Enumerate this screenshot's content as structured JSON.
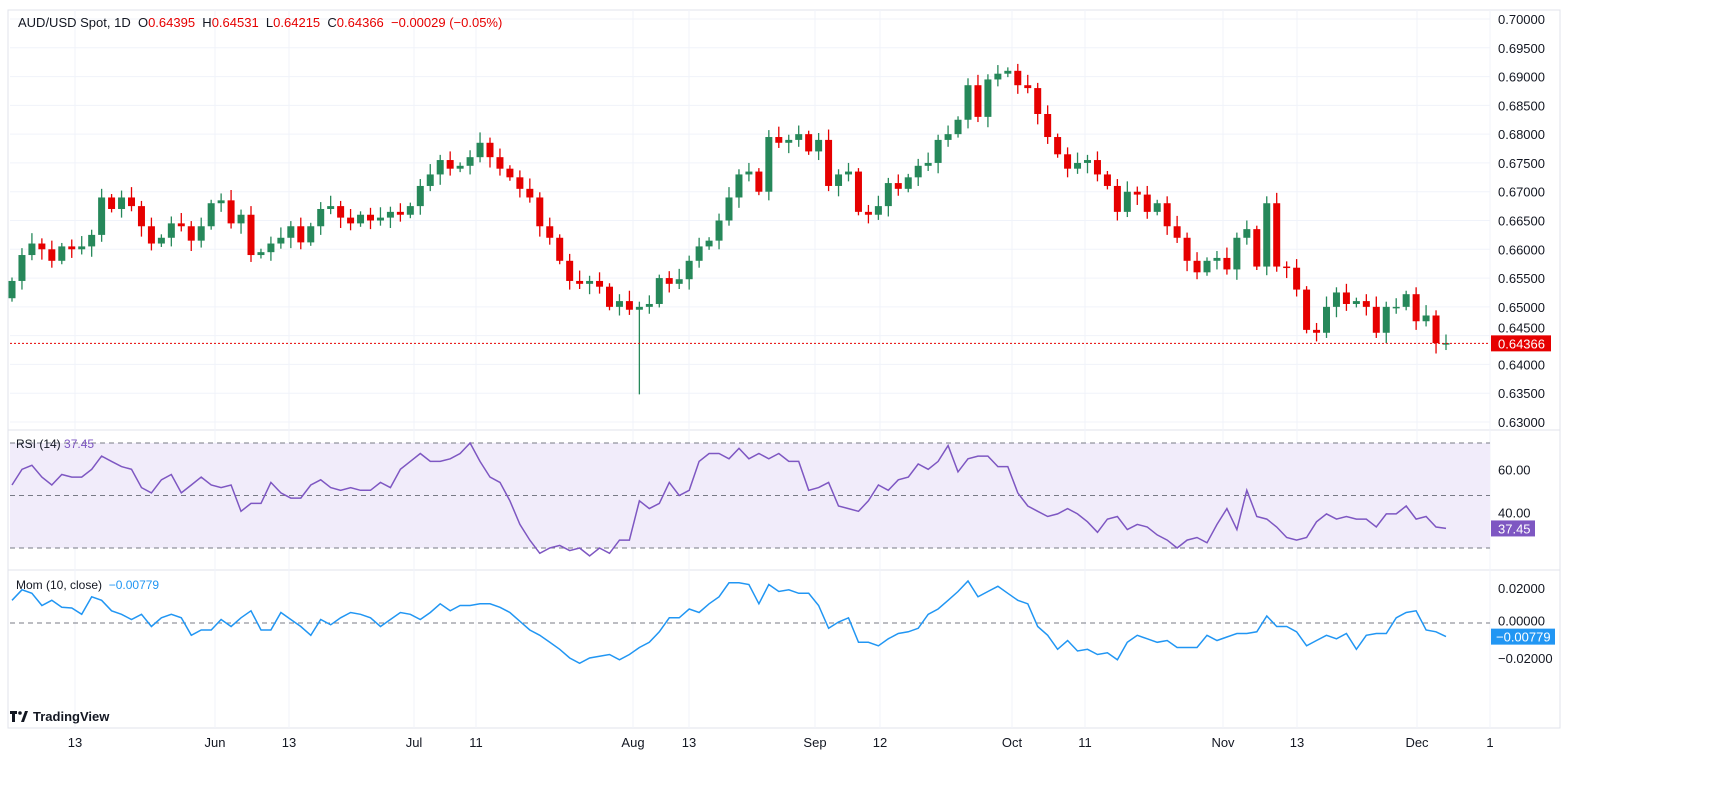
{
  "header": {
    "symbol": "AUD/USD Spot, 1D",
    "open_label": "O",
    "open": "0.64395",
    "high_label": "H",
    "high": "0.64531",
    "low_label": "L",
    "low": "0.64215",
    "close_label": "C",
    "close": "0.64366",
    "change": "−0.00029 (−0.05%)"
  },
  "rsi": {
    "label": "RSI (14)",
    "value": "37.45",
    "color": "#7e57c2"
  },
  "mom": {
    "label": "Mom (10, close)",
    "value": "−0.00779",
    "color": "#2196f3"
  },
  "brand": {
    "name": "TradingView",
    "icon": "tradingview-logo-icon"
  },
  "colors": {
    "up": "#26885a",
    "down": "#e60000",
    "rsi_band": "#f1ecfa"
  },
  "chart_data": [
    {
      "type": "candlestick",
      "ylim": [
        0.63,
        0.7
      ],
      "y_ticks": [
        "0.70000",
        "0.69500",
        "0.69000",
        "0.68500",
        "0.68000",
        "0.67500",
        "0.67000",
        "0.66500",
        "0.66000",
        "0.65500",
        "0.65000",
        "0.64500",
        "0.64000",
        "0.63500",
        "0.63000"
      ],
      "x_ticks": [
        "13",
        "Jun",
        "13",
        "Jul",
        "11",
        "Aug",
        "13",
        "Sep",
        "12",
        "Oct",
        "11",
        "Nov",
        "13",
        "Dec",
        "1"
      ],
      "last_price": 0.64366,
      "last_price_label": "0.64366",
      "first_open": 0.6515,
      "aug5_low": 0.6348,
      "closes": [
        0.6545,
        0.659,
        0.661,
        0.66,
        0.658,
        0.6605,
        0.66,
        0.6605,
        0.6625,
        0.669,
        0.667,
        0.669,
        0.6675,
        0.664,
        0.661,
        0.662,
        0.6645,
        0.664,
        0.6615,
        0.664,
        0.668,
        0.6685,
        0.6645,
        0.666,
        0.659,
        0.6595,
        0.661,
        0.662,
        0.664,
        0.6612,
        0.664,
        0.667,
        0.6675,
        0.6655,
        0.6645,
        0.666,
        0.665,
        0.6655,
        0.6665,
        0.666,
        0.6675,
        0.671,
        0.673,
        0.6755,
        0.674,
        0.6745,
        0.676,
        0.6785,
        0.676,
        0.674,
        0.6725,
        0.6705,
        0.669,
        0.664,
        0.662,
        0.658,
        0.6545,
        0.654,
        0.6545,
        0.6535,
        0.65,
        0.651,
        0.6495,
        0.65,
        0.6505,
        0.655,
        0.654,
        0.6548,
        0.658,
        0.6605,
        0.6615,
        0.665,
        0.669,
        0.673,
        0.6735,
        0.67,
        0.6795,
        0.6785,
        0.679,
        0.68,
        0.677,
        0.679,
        0.671,
        0.673,
        0.6735,
        0.6665,
        0.666,
        0.6675,
        0.6715,
        0.6705,
        0.6725,
        0.6745,
        0.675,
        0.679,
        0.68,
        0.6825,
        0.6885,
        0.683,
        0.6895,
        0.6905,
        0.691,
        0.6885,
        0.688,
        0.6835,
        0.6795,
        0.6765,
        0.674,
        0.675,
        0.6755,
        0.673,
        0.671,
        0.6665,
        0.67,
        0.6695,
        0.6665,
        0.668,
        0.664,
        0.662,
        0.658,
        0.656,
        0.658,
        0.6585,
        0.6565,
        0.662,
        0.6635,
        0.657,
        0.668,
        0.657,
        0.6568,
        0.653,
        0.646,
        0.6455,
        0.65,
        0.6525,
        0.6505,
        0.651,
        0.65,
        0.6455,
        0.65,
        0.65,
        0.6522,
        0.6475,
        0.6485,
        0.6437,
        0.6437
      ]
    },
    {
      "type": "line",
      "name": "RSI (14)",
      "ylim": [
        20,
        80
      ],
      "y_ticks": [
        "60.00",
        "40.00"
      ],
      "bands": [
        70,
        50,
        30
      ],
      "values": [
        54,
        60,
        61.5,
        57,
        54,
        58,
        57,
        57,
        60,
        65,
        63,
        61,
        60,
        53,
        51,
        56,
        58,
        51,
        54,
        57,
        54,
        53,
        54,
        44,
        47,
        47,
        55,
        51,
        49,
        49,
        54,
        56,
        53,
        52,
        53,
        52,
        52,
        55,
        53,
        60,
        63,
        66,
        63,
        63,
        64,
        66,
        70,
        63,
        57,
        55,
        48,
        39,
        33,
        28,
        30,
        31,
        29,
        30,
        27,
        30,
        28,
        33,
        33,
        48,
        45,
        47,
        55,
        50,
        52,
        63,
        66,
        66,
        64,
        68,
        64,
        66,
        64,
        66,
        63,
        63,
        52,
        53,
        55,
        46,
        45,
        44,
        48,
        54,
        52,
        56,
        57,
        62,
        60,
        63,
        69,
        59,
        64,
        65,
        65,
        61,
        61,
        51,
        46,
        44,
        42,
        43,
        45,
        43,
        40,
        36,
        41,
        42,
        37,
        39,
        38,
        35,
        33,
        30,
        33,
        34,
        32,
        39,
        45,
        37,
        52,
        42,
        41,
        38,
        34,
        33,
        34,
        40,
        43,
        41,
        42,
        41,
        41,
        38,
        43,
        43,
        46,
        41,
        42,
        38,
        37.45
      ]
    },
    {
      "type": "line",
      "name": "Mom (10, close)",
      "ylim": [
        -0.03,
        0.03
      ],
      "y_ticks": [
        "0.02000",
        "0.00000",
        "−0.02000"
      ],
      "zero_line": 0,
      "values": [
        0.013,
        0.019,
        0.017,
        0.01,
        0.013,
        0.009,
        0.0086,
        0.005,
        0.015,
        0.013,
        0.007,
        0.005,
        0.002,
        0.005,
        -0.002,
        0.003,
        0.005,
        0.003,
        -0.007,
        -0.004,
        -0.004,
        0.002,
        -0.002,
        0.003,
        0.007,
        -0.004,
        -0.004,
        0.006,
        0.002,
        -0.002,
        -0.007,
        0.002,
        -0.001,
        0.003,
        0.006,
        0.005,
        0.003,
        -0.002,
        0.002,
        0.006,
        0.005,
        0.002,
        0.006,
        0.011,
        0.007,
        0.01,
        0.01,
        0.011,
        0.011,
        0.009,
        0.006,
        0.001,
        -0.004,
        -0.007,
        -0.011,
        -0.015,
        -0.02,
        -0.023,
        -0.02,
        -0.019,
        -0.018,
        -0.021,
        -0.018,
        -0.014,
        -0.011,
        -0.005,
        0.003,
        0.003,
        0.008,
        0.006,
        0.011,
        0.015,
        0.023,
        0.023,
        0.022,
        0.011,
        0.022,
        0.018,
        0.019,
        0.017,
        0.017,
        0.01,
        -0.003,
        0.0006,
        0.003,
        -0.011,
        -0.011,
        -0.013,
        -0.009,
        -0.006,
        -0.005,
        -0.003,
        0.005,
        0.008,
        0.013,
        0.018,
        0.024,
        0.015,
        0.018,
        0.021,
        0.017,
        0.013,
        0.011,
        -0.002,
        -0.007,
        -0.015,
        -0.01,
        -0.016,
        -0.015,
        -0.018,
        -0.017,
        -0.021,
        -0.011,
        -0.007,
        -0.009,
        -0.011,
        -0.01,
        -0.014,
        -0.014,
        -0.014,
        -0.007,
        -0.01,
        -0.008,
        -0.006,
        -0.006,
        -0.005,
        0.004,
        -0.002,
        -0.002,
        -0.005,
        -0.013,
        -0.01,
        -0.007,
        -0.009,
        -0.006,
        -0.015,
        -0.007,
        -0.006,
        -0.006,
        0.003,
        0.006,
        0.007,
        -0.004,
        -0.005,
        -0.00779
      ]
    }
  ]
}
